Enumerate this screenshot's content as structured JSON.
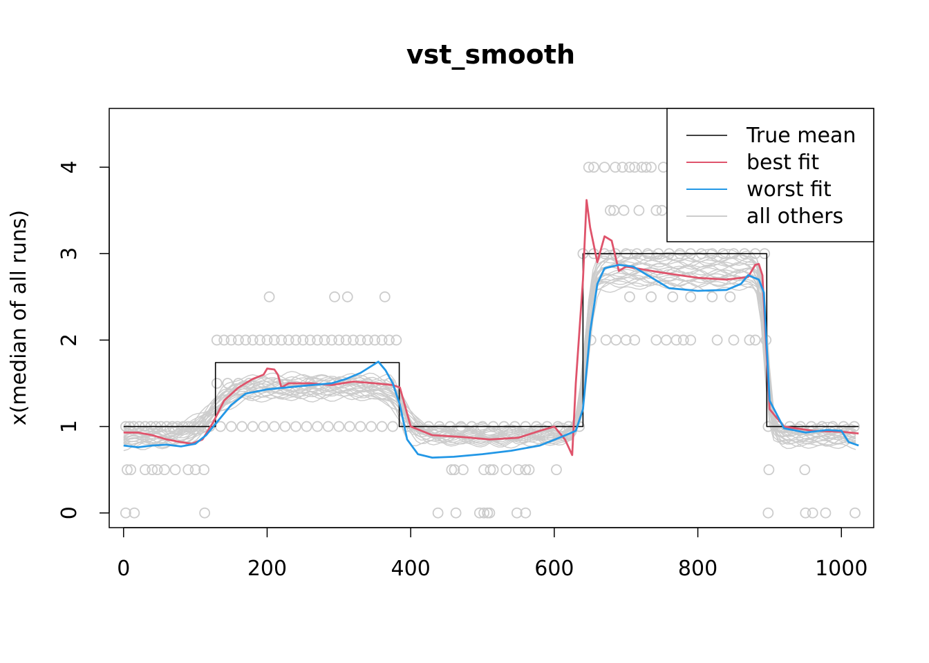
{
  "chart_data": {
    "type": "line",
    "title": "vst_smooth",
    "xlabel": "",
    "ylabel": "x(median of all runs)",
    "xlim": [
      -20,
      1045
    ],
    "ylim": [
      -0.17,
      4.68
    ],
    "x_ticks": [
      0,
      200,
      400,
      600,
      800,
      1000
    ],
    "x_tick_labels": [
      "0",
      "200",
      "400",
      "600",
      "800",
      "1000"
    ],
    "y_ticks": [
      0,
      1,
      2,
      3,
      4
    ],
    "y_tick_labels": [
      "0",
      "1",
      "2",
      "3",
      "4"
    ],
    "grid": false,
    "legend_position": "top-right",
    "legend": [
      {
        "label": "True mean",
        "color": "#000000"
      },
      {
        "label": "best fit",
        "color": "#DF536B"
      },
      {
        "label": "worst fit",
        "color": "#2297E6"
      },
      {
        "label": "all others",
        "color": "#CCCCCC"
      }
    ],
    "series": [
      {
        "name": "True mean",
        "color": "#000000",
        "x": [
          0,
          128,
          128,
          384,
          384,
          640,
          640,
          896,
          896,
          1024
        ],
        "y": [
          1,
          1,
          1.74,
          1.74,
          1,
          1,
          3,
          3,
          1,
          1
        ]
      },
      {
        "name": "best fit",
        "color": "#DF536B",
        "x": [
          0,
          20,
          40,
          60,
          80,
          95,
          110,
          125,
          140,
          160,
          180,
          195,
          200,
          210,
          215,
          220,
          230,
          260,
          290,
          320,
          350,
          375,
          385,
          400,
          430,
          470,
          510,
          550,
          580,
          600,
          615,
          625,
          630,
          640,
          645,
          650,
          660,
          670,
          680,
          690,
          700,
          750,
          800,
          840,
          870,
          880,
          885,
          890,
          900,
          920,
          960,
          1000,
          1024
        ],
        "y": [
          0.93,
          0.93,
          0.9,
          0.85,
          0.82,
          0.8,
          0.85,
          1.05,
          1.3,
          1.45,
          1.55,
          1.6,
          1.67,
          1.66,
          1.6,
          1.45,
          1.5,
          1.5,
          1.48,
          1.52,
          1.5,
          1.48,
          1.45,
          1.0,
          0.9,
          0.88,
          0.85,
          0.87,
          0.95,
          1.0,
          0.85,
          0.67,
          1.5,
          2.7,
          3.62,
          3.3,
          2.9,
          3.2,
          3.15,
          2.8,
          2.85,
          2.78,
          2.72,
          2.7,
          2.73,
          2.87,
          2.88,
          2.75,
          1.2,
          1.0,
          0.95,
          0.94,
          0.92
        ]
      },
      {
        "name": "worst fit",
        "color": "#2297E6",
        "x": [
          0,
          20,
          40,
          60,
          80,
          100,
          115,
          130,
          150,
          170,
          200,
          250,
          290,
          310,
          330,
          355,
          365,
          375,
          385,
          395,
          410,
          430,
          460,
          500,
          540,
          580,
          610,
          630,
          640,
          650,
          660,
          670,
          690,
          710,
          740,
          760,
          800,
          840,
          860,
          870,
          885,
          892,
          900,
          920,
          950,
          980,
          1000,
          1010,
          1024
        ],
        "y": [
          0.78,
          0.76,
          0.78,
          0.79,
          0.77,
          0.8,
          0.9,
          1.05,
          1.25,
          1.38,
          1.43,
          1.47,
          1.5,
          1.55,
          1.62,
          1.75,
          1.65,
          1.5,
          1.25,
          0.85,
          0.68,
          0.64,
          0.65,
          0.68,
          0.72,
          0.78,
          0.88,
          0.95,
          1.2,
          2.1,
          2.65,
          2.83,
          2.87,
          2.85,
          2.7,
          2.6,
          2.57,
          2.58,
          2.65,
          2.75,
          2.7,
          2.55,
          1.3,
          0.98,
          0.93,
          0.96,
          0.95,
          0.82,
          0.78
        ]
      }
    ],
    "others_note": "approximately 25 additional light-gray smoothed runs plus gray open-circle observations at values 0, 0.5, 1, 1.5, 2, 2.5, 3, 3.5, 4",
    "observations": [
      {
        "x": 3,
        "y": 1
      },
      {
        "x": 8,
        "y": 1
      },
      {
        "x": 14,
        "y": 1
      },
      {
        "x": 22,
        "y": 1
      },
      {
        "x": 30,
        "y": 1
      },
      {
        "x": 38,
        "y": 1
      },
      {
        "x": 45,
        "y": 1
      },
      {
        "x": 52,
        "y": 1
      },
      {
        "x": 60,
        "y": 1
      },
      {
        "x": 68,
        "y": 1
      },
      {
        "x": 75,
        "y": 1
      },
      {
        "x": 83,
        "y": 1
      },
      {
        "x": 90,
        "y": 1
      },
      {
        "x": 98,
        "y": 1
      },
      {
        "x": 105,
        "y": 1
      },
      {
        "x": 112,
        "y": 1
      },
      {
        "x": 120,
        "y": 1
      },
      {
        "x": 5,
        "y": 0.5
      },
      {
        "x": 10,
        "y": 0.5
      },
      {
        "x": 30,
        "y": 0.5
      },
      {
        "x": 40,
        "y": 0.5
      },
      {
        "x": 47,
        "y": 0.5
      },
      {
        "x": 57,
        "y": 0.5
      },
      {
        "x": 72,
        "y": 0.5
      },
      {
        "x": 90,
        "y": 0.5
      },
      {
        "x": 100,
        "y": 0.5
      },
      {
        "x": 112,
        "y": 0.5
      },
      {
        "x": 3,
        "y": 0
      },
      {
        "x": 15,
        "y": 0
      },
      {
        "x": 113,
        "y": 0
      },
      {
        "x": 130,
        "y": 2
      },
      {
        "x": 140,
        "y": 2
      },
      {
        "x": 150,
        "y": 2
      },
      {
        "x": 160,
        "y": 2
      },
      {
        "x": 170,
        "y": 2
      },
      {
        "x": 180,
        "y": 2
      },
      {
        "x": 190,
        "y": 2
      },
      {
        "x": 200,
        "y": 2
      },
      {
        "x": 210,
        "y": 2
      },
      {
        "x": 220,
        "y": 2
      },
      {
        "x": 230,
        "y": 2
      },
      {
        "x": 240,
        "y": 2
      },
      {
        "x": 250,
        "y": 2
      },
      {
        "x": 260,
        "y": 2
      },
      {
        "x": 270,
        "y": 2
      },
      {
        "x": 280,
        "y": 2
      },
      {
        "x": 290,
        "y": 2
      },
      {
        "x": 300,
        "y": 2
      },
      {
        "x": 310,
        "y": 2
      },
      {
        "x": 320,
        "y": 2
      },
      {
        "x": 330,
        "y": 2
      },
      {
        "x": 340,
        "y": 2
      },
      {
        "x": 350,
        "y": 2
      },
      {
        "x": 360,
        "y": 2
      },
      {
        "x": 370,
        "y": 2
      },
      {
        "x": 380,
        "y": 2
      },
      {
        "x": 130,
        "y": 1.5
      },
      {
        "x": 145,
        "y": 1.5
      },
      {
        "x": 160,
        "y": 1.5
      },
      {
        "x": 175,
        "y": 1.5
      },
      {
        "x": 215,
        "y": 1.5
      },
      {
        "x": 260,
        "y": 1.5
      },
      {
        "x": 300,
        "y": 1.5
      },
      {
        "x": 340,
        "y": 1.5
      },
      {
        "x": 370,
        "y": 1.5
      },
      {
        "x": 135,
        "y": 1
      },
      {
        "x": 150,
        "y": 1
      },
      {
        "x": 165,
        "y": 1
      },
      {
        "x": 180,
        "y": 1
      },
      {
        "x": 195,
        "y": 1
      },
      {
        "x": 210,
        "y": 1
      },
      {
        "x": 225,
        "y": 1
      },
      {
        "x": 240,
        "y": 1
      },
      {
        "x": 255,
        "y": 1
      },
      {
        "x": 270,
        "y": 1
      },
      {
        "x": 285,
        "y": 1
      },
      {
        "x": 300,
        "y": 1
      },
      {
        "x": 315,
        "y": 1
      },
      {
        "x": 330,
        "y": 1
      },
      {
        "x": 345,
        "y": 1
      },
      {
        "x": 360,
        "y": 1
      },
      {
        "x": 375,
        "y": 1
      },
      {
        "x": 203,
        "y": 2.5
      },
      {
        "x": 294,
        "y": 2.5
      },
      {
        "x": 312,
        "y": 2.5
      },
      {
        "x": 364,
        "y": 2.5
      },
      {
        "x": 395,
        "y": 1
      },
      {
        "x": 410,
        "y": 1
      },
      {
        "x": 425,
        "y": 1
      },
      {
        "x": 440,
        "y": 1
      },
      {
        "x": 455,
        "y": 1
      },
      {
        "x": 470,
        "y": 1
      },
      {
        "x": 485,
        "y": 1
      },
      {
        "x": 500,
        "y": 1
      },
      {
        "x": 515,
        "y": 1
      },
      {
        "x": 530,
        "y": 1
      },
      {
        "x": 545,
        "y": 1
      },
      {
        "x": 560,
        "y": 1
      },
      {
        "x": 575,
        "y": 1
      },
      {
        "x": 590,
        "y": 1
      },
      {
        "x": 605,
        "y": 1
      },
      {
        "x": 620,
        "y": 1
      },
      {
        "x": 635,
        "y": 1
      },
      {
        "x": 457,
        "y": 0.5
      },
      {
        "x": 461,
        "y": 0.5
      },
      {
        "x": 473,
        "y": 0.5
      },
      {
        "x": 502,
        "y": 0.5
      },
      {
        "x": 511,
        "y": 0.5
      },
      {
        "x": 515,
        "y": 0.5
      },
      {
        "x": 533,
        "y": 0.5
      },
      {
        "x": 550,
        "y": 0.5
      },
      {
        "x": 560,
        "y": 0.5
      },
      {
        "x": 565,
        "y": 0.5
      },
      {
        "x": 603,
        "y": 0.5
      },
      {
        "x": 438,
        "y": 0
      },
      {
        "x": 463,
        "y": 0
      },
      {
        "x": 496,
        "y": 0
      },
      {
        "x": 502,
        "y": 0
      },
      {
        "x": 507,
        "y": 0
      },
      {
        "x": 510,
        "y": 0
      },
      {
        "x": 548,
        "y": 0
      },
      {
        "x": 560,
        "y": 0
      },
      {
        "x": 640,
        "y": 3
      },
      {
        "x": 655,
        "y": 3
      },
      {
        "x": 670,
        "y": 3
      },
      {
        "x": 685,
        "y": 3
      },
      {
        "x": 700,
        "y": 3
      },
      {
        "x": 715,
        "y": 3
      },
      {
        "x": 730,
        "y": 3
      },
      {
        "x": 745,
        "y": 3
      },
      {
        "x": 760,
        "y": 3
      },
      {
        "x": 775,
        "y": 3
      },
      {
        "x": 790,
        "y": 3
      },
      {
        "x": 805,
        "y": 3
      },
      {
        "x": 820,
        "y": 3
      },
      {
        "x": 835,
        "y": 3
      },
      {
        "x": 850,
        "y": 3
      },
      {
        "x": 865,
        "y": 3
      },
      {
        "x": 880,
        "y": 3
      },
      {
        "x": 893,
        "y": 3
      },
      {
        "x": 648,
        "y": 4
      },
      {
        "x": 655,
        "y": 4
      },
      {
        "x": 670,
        "y": 4
      },
      {
        "x": 685,
        "y": 4
      },
      {
        "x": 695,
        "y": 4
      },
      {
        "x": 705,
        "y": 4
      },
      {
        "x": 712,
        "y": 4
      },
      {
        "x": 722,
        "y": 4
      },
      {
        "x": 728,
        "y": 4
      },
      {
        "x": 735,
        "y": 4
      },
      {
        "x": 752,
        "y": 4
      },
      {
        "x": 678,
        "y": 3.5
      },
      {
        "x": 683,
        "y": 3.5
      },
      {
        "x": 697,
        "y": 3.5
      },
      {
        "x": 718,
        "y": 3.5
      },
      {
        "x": 742,
        "y": 3.5
      },
      {
        "x": 750,
        "y": 3.5
      },
      {
        "x": 765,
        "y": 3.5
      },
      {
        "x": 651,
        "y": 2
      },
      {
        "x": 672,
        "y": 2
      },
      {
        "x": 686,
        "y": 2
      },
      {
        "x": 700,
        "y": 2
      },
      {
        "x": 712,
        "y": 2
      },
      {
        "x": 742,
        "y": 2
      },
      {
        "x": 756,
        "y": 2
      },
      {
        "x": 770,
        "y": 2
      },
      {
        "x": 780,
        "y": 2
      },
      {
        "x": 790,
        "y": 2
      },
      {
        "x": 827,
        "y": 2
      },
      {
        "x": 850,
        "y": 2
      },
      {
        "x": 872,
        "y": 2
      },
      {
        "x": 880,
        "y": 2
      },
      {
        "x": 895,
        "y": 2
      },
      {
        "x": 705,
        "y": 2.5
      },
      {
        "x": 735,
        "y": 2.5
      },
      {
        "x": 765,
        "y": 2.5
      },
      {
        "x": 790,
        "y": 2.5
      },
      {
        "x": 820,
        "y": 2.5
      },
      {
        "x": 845,
        "y": 2.5
      },
      {
        "x": 898,
        "y": 1
      },
      {
        "x": 913,
        "y": 1
      },
      {
        "x": 928,
        "y": 1
      },
      {
        "x": 943,
        "y": 1
      },
      {
        "x": 958,
        "y": 1
      },
      {
        "x": 973,
        "y": 1
      },
      {
        "x": 988,
        "y": 1
      },
      {
        "x": 1003,
        "y": 1
      },
      {
        "x": 1018,
        "y": 1
      },
      {
        "x": 899,
        "y": 0.5
      },
      {
        "x": 949,
        "y": 0.5
      },
      {
        "x": 898,
        "y": 0
      },
      {
        "x": 950,
        "y": 0
      },
      {
        "x": 960,
        "y": 0
      },
      {
        "x": 978,
        "y": 0
      },
      {
        "x": 1019,
        "y": 0
      }
    ]
  }
}
